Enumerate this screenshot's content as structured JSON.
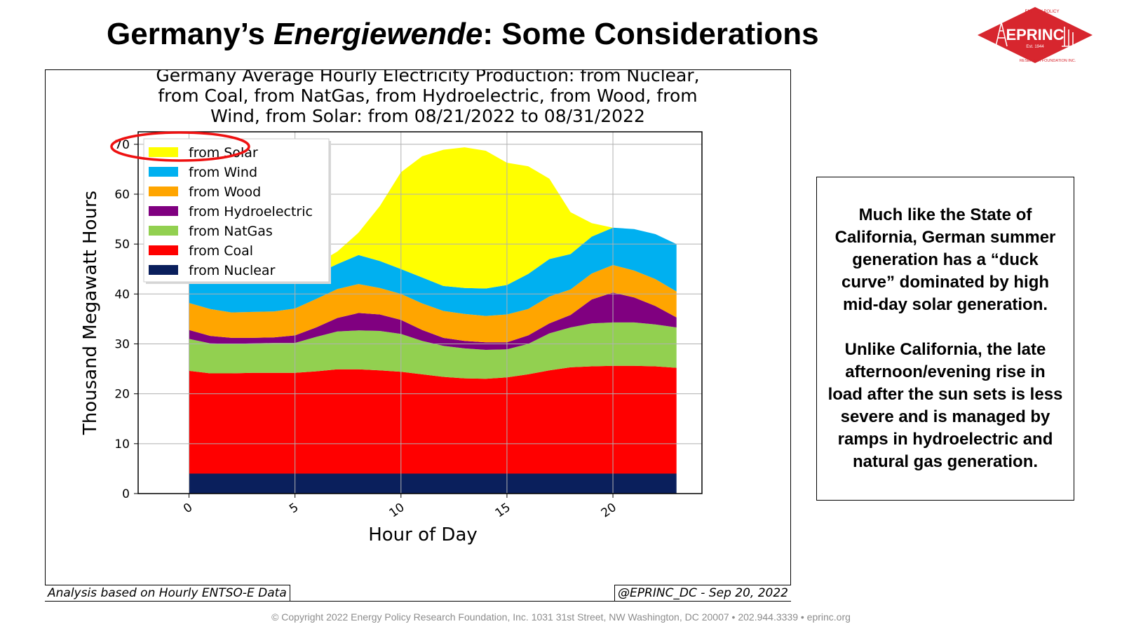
{
  "slide": {
    "title_before": "Germany’s ",
    "title_italic": "Energiewende",
    "title_after": ": Some Considerations"
  },
  "logo": {
    "name": "EPRINC",
    "est": "Est. 1944",
    "ring_top": "ENERGY POLICY",
    "ring_bottom": "RESEARCH FOUNDATION INC.",
    "color": "#d7262e",
    "icon": "oil-derrick-icon"
  },
  "chart_data": {
    "type": "area",
    "stacked": true,
    "title_lines": [
      "Germany Average Hourly Electricity Production: from Nuclear,",
      "from Coal, from NatGas, from Hydroelectric, from Wood, from",
      "Wind, from Solar: from 08/21/2022 to 08/31/2022"
    ],
    "xlabel": "Hour of Day",
    "ylabel": "Thousand Megawatt Hours",
    "xlim": [
      -2.4,
      24.2
    ],
    "ylim": [
      0,
      72.5
    ],
    "xticks": [
      0,
      5,
      10,
      15,
      20
    ],
    "yticks": [
      0,
      10,
      20,
      30,
      40,
      50,
      60,
      70
    ],
    "grid": true,
    "legend_position": "top-left",
    "x": [
      0,
      1,
      2,
      3,
      4,
      5,
      6,
      7,
      8,
      9,
      10,
      11,
      12,
      13,
      14,
      15,
      16,
      17,
      18,
      19,
      20,
      21,
      22,
      23
    ],
    "series": [
      {
        "name": "from Nuclear",
        "color": "#0a1f5c",
        "values": [
          4,
          4,
          4,
          4,
          4,
          4,
          4,
          4,
          4,
          4,
          4,
          4,
          4,
          4,
          4,
          4,
          4,
          4,
          4,
          4,
          4,
          4,
          4,
          4
        ]
      },
      {
        "name": "from Coal",
        "color": "#ff0000",
        "values": [
          20.6,
          20.1,
          20.1,
          20.2,
          20.2,
          20.2,
          20.5,
          20.9,
          20.9,
          20.7,
          20.4,
          19.9,
          19.4,
          19.1,
          19.0,
          19.3,
          19.9,
          20.7,
          21.3,
          21.5,
          21.6,
          21.6,
          21.5,
          21.2
        ]
      },
      {
        "name": "from NatGas",
        "color": "#92d050",
        "values": [
          6.4,
          6.0,
          5.9,
          5.9,
          6.0,
          6.0,
          6.9,
          7.6,
          7.8,
          7.9,
          7.6,
          6.7,
          6.2,
          6.0,
          5.8,
          5.6,
          6.1,
          7.4,
          8.0,
          8.6,
          8.7,
          8.7,
          8.4,
          8.1
        ]
      },
      {
        "name": "from Hydroelectric",
        "color": "#800080",
        "values": [
          1.8,
          1.5,
          1.2,
          1.1,
          1.1,
          1.5,
          1.9,
          2.7,
          3.5,
          3.3,
          2.8,
          2.2,
          1.6,
          1.5,
          1.5,
          1.4,
          1.7,
          2.0,
          2.5,
          4.8,
          6.0,
          5.0,
          3.7,
          2.0
        ]
      },
      {
        "name": "from Wood",
        "color": "#ffa500",
        "values": [
          5.4,
          5.4,
          5.1,
          5.2,
          5.2,
          5.4,
          5.7,
          5.8,
          5.8,
          5.3,
          5.2,
          5.3,
          5.4,
          5.4,
          5.3,
          5.6,
          5.3,
          5.4,
          5.1,
          5.2,
          5.5,
          5.4,
          5.4,
          5.2
        ]
      },
      {
        "name": "from Wind",
        "color": "#00b0f0",
        "values": [
          7.9,
          7.5,
          7.4,
          7.4,
          7.5,
          8.1,
          5.0,
          5.0,
          5.8,
          5.4,
          5.0,
          5.2,
          5.0,
          5.2,
          5.5,
          5.9,
          7.0,
          7.5,
          7.1,
          7.4,
          7.5,
          8.3,
          9.0,
          9.5
        ]
      },
      {
        "name": "from Solar",
        "color": "#ffff00",
        "values": [
          0,
          0,
          0,
          0,
          0,
          0,
          2.0,
          2.5,
          4.5,
          11.0,
          19.4,
          24.3,
          27.3,
          28.2,
          27.6,
          24.5,
          21.6,
          16.1,
          8.4,
          2.7,
          0,
          0,
          0,
          0
        ]
      }
    ]
  },
  "annotation": {
    "label": "from Solar",
    "shape": "ellipse",
    "color": "#ee1111"
  },
  "footnotes": {
    "left": "Analysis based on Hourly ENTSO-E Data",
    "right": "@EPRINC_DC - Sep 20, 2022"
  },
  "text_box": {
    "paragraph1": "Much like the State of California, German summer generation has a “duck curve” dominated by high mid-day solar generation.",
    "paragraph2": "Unlike California, the late afternoon/evening rise in load after the sun sets is less severe and is managed by ramps in hydroelectric and natural gas generation."
  },
  "copyright": "© Copyright 2022 Energy Policy Research Foundation, Inc. 1031 31st Street, NW Washington, DC 20007 • 202.944.3339 • eprinc.org"
}
